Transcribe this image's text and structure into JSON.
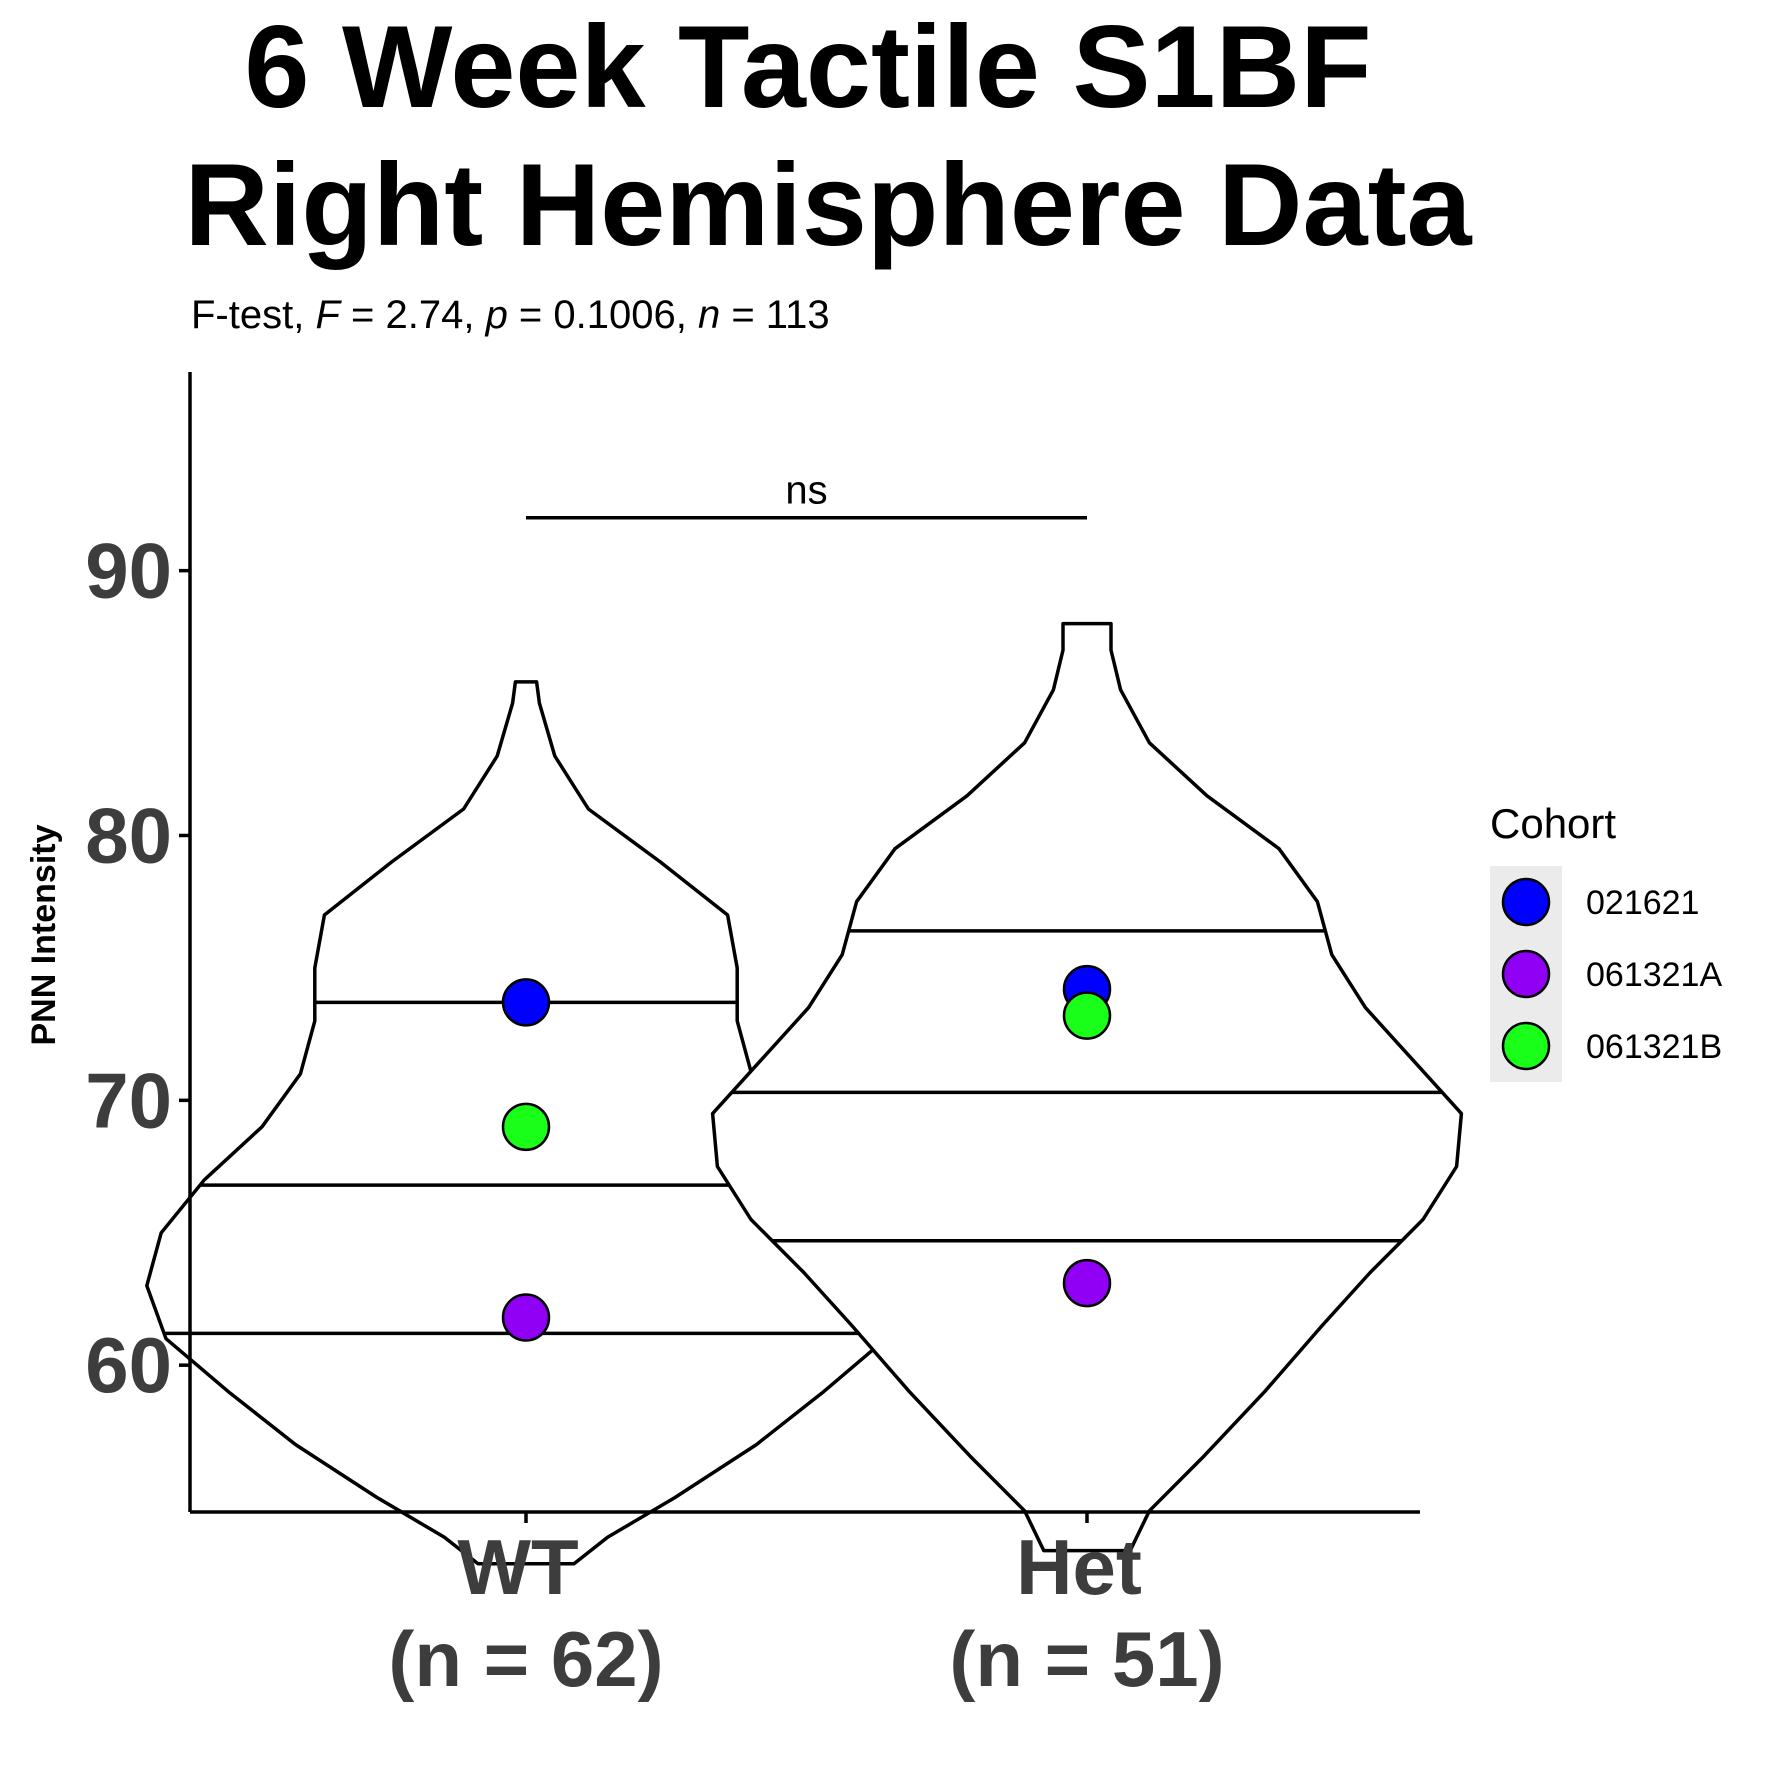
{
  "chart_data": {
    "type": "violin",
    "title_lines": [
      "6 Week Tactile S1BF",
      "Right Hemisphere Data"
    ],
    "subtitle": {
      "prefix": "F-test, ",
      "F_symbol": "F",
      "F_text": " = 2.74, ",
      "p_symbol": "p",
      "p_text": " = 0.1006, ",
      "n_symbol": "n",
      "n_text": " = 113"
    },
    "ylabel": "PNN Intensity",
    "ylim": [
      51,
      94
    ],
    "yticks": [
      60,
      70,
      80,
      90
    ],
    "categories": [
      "WT",
      "Het"
    ],
    "category_counts": [
      "(n = 62)",
      "(n = 51)"
    ],
    "significance": {
      "label": "ns",
      "y": 92
    },
    "violins": [
      {
        "group": "WT",
        "min": 52.5,
        "max": 85.8,
        "quantiles": [
          61.2,
          66.8,
          73.7
        ],
        "density_half_width": [
          [
            52.5,
            0.1
          ],
          [
            53.5,
            0.17
          ],
          [
            55.0,
            0.31
          ],
          [
            57.0,
            0.48
          ],
          [
            59.0,
            0.62
          ],
          [
            61.0,
            0.75
          ],
          [
            63.0,
            0.79
          ],
          [
            65.0,
            0.76
          ],
          [
            67.0,
            0.67
          ],
          [
            69.0,
            0.55
          ],
          [
            71.0,
            0.47
          ],
          [
            73.0,
            0.44
          ],
          [
            75.0,
            0.44
          ],
          [
            77.0,
            0.42
          ],
          [
            79.0,
            0.28
          ],
          [
            81.0,
            0.13
          ],
          [
            83.0,
            0.06
          ],
          [
            85.0,
            0.028
          ],
          [
            85.8,
            0.022
          ]
        ]
      },
      {
        "group": "Het",
        "min": 53.0,
        "max": 88.0,
        "quantiles": [
          64.7,
          70.3,
          76.4
        ],
        "density_half_width": [
          [
            53.0,
            0.09
          ],
          [
            54.5,
            0.13
          ],
          [
            56.5,
            0.24
          ],
          [
            59.0,
            0.37
          ],
          [
            61.5,
            0.49
          ],
          [
            63.5,
            0.59
          ],
          [
            65.5,
            0.7
          ],
          [
            67.5,
            0.77
          ],
          [
            69.5,
            0.78
          ],
          [
            71.5,
            0.68
          ],
          [
            73.5,
            0.58
          ],
          [
            75.5,
            0.51
          ],
          [
            77.5,
            0.48
          ],
          [
            79.5,
            0.4
          ],
          [
            81.5,
            0.25
          ],
          [
            83.5,
            0.13
          ],
          [
            85.5,
            0.07
          ],
          [
            87.0,
            0.05
          ],
          [
            88.0,
            0.05
          ]
        ]
      }
    ],
    "points": [
      {
        "group": "WT",
        "cohort": "021621",
        "y": 73.7
      },
      {
        "group": "WT",
        "cohort": "061321B",
        "y": 69.0
      },
      {
        "group": "WT",
        "cohort": "061321A",
        "y": 61.8
      },
      {
        "group": "Het",
        "cohort": "021621",
        "y": 74.2
      },
      {
        "group": "Het",
        "cohort": "061321B",
        "y": 73.2
      },
      {
        "group": "Het",
        "cohort": "061321A",
        "y": 63.1
      }
    ],
    "legend": {
      "title": "Cohort",
      "placement": "right",
      "items": [
        {
          "label": "021621",
          "color": "#0000ff"
        },
        {
          "label": "061321A",
          "color": "#8f00f5"
        },
        {
          "label": "061321B",
          "color": "#1aff1a"
        }
      ]
    },
    "colors": {
      "axis": "#000000",
      "tick_text": "#3d3d3d",
      "legend_key_bg": "#ebebeb"
    }
  }
}
